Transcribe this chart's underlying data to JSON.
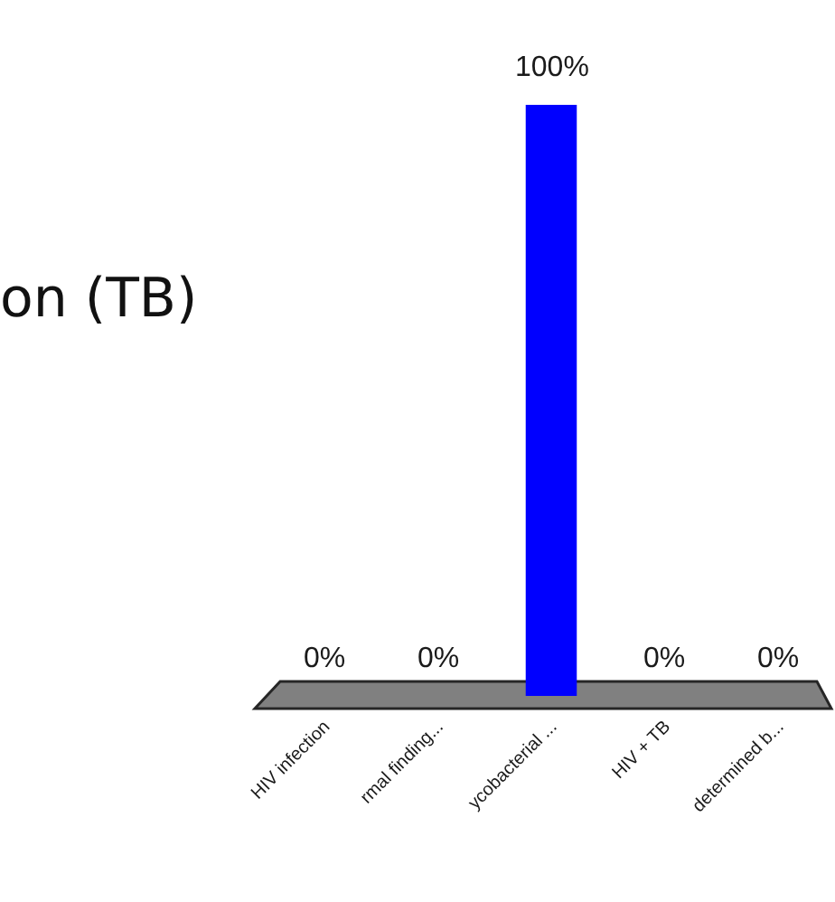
{
  "chart_data": {
    "type": "bar",
    "title": "on (TB)",
    "categories": [
      "HIV infection",
      "rmal finding...",
      "ycobacterial ...",
      "HIV + TB",
      "determined b..."
    ],
    "values": [
      0,
      0,
      100,
      0,
      0
    ],
    "colors": [
      "#44719f",
      "#9b3c38",
      "#0000ff",
      "#660066",
      "#d6d6cc"
    ],
    "value_labels": [
      "0%",
      "0%",
      "100%",
      "0%",
      "0%"
    ]
  }
}
